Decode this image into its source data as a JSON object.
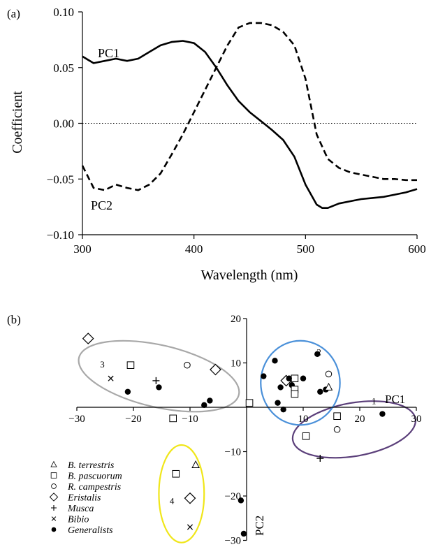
{
  "chart_data": [
    {
      "panel": "(a)",
      "type": "line",
      "xlabel": "Wavelength (nm)",
      "ylabel": "Coefficient",
      "xlim": [
        300,
        600
      ],
      "ylim": [
        -0.1,
        0.1
      ],
      "xticks": [
        "300",
        "400",
        "500",
        "600"
      ],
      "yticks": [
        "−0.10",
        "−0.05",
        "0.00",
        "0.05",
        "0.10"
      ],
      "zero_line": "dotted",
      "series": [
        {
          "name": "PC1",
          "style": "solid",
          "x": [
            300,
            310,
            320,
            330,
            340,
            350,
            360,
            370,
            380,
            390,
            400,
            410,
            420,
            430,
            440,
            450,
            460,
            470,
            480,
            490,
            500,
            510,
            515,
            520,
            530,
            540,
            550,
            560,
            570,
            580,
            590,
            600
          ],
          "y": [
            0.06,
            0.054,
            0.056,
            0.058,
            0.056,
            0.058,
            0.064,
            0.07,
            0.073,
            0.074,
            0.072,
            0.064,
            0.05,
            0.034,
            0.02,
            0.01,
            0.002,
            -0.006,
            -0.015,
            -0.03,
            -0.055,
            -0.073,
            -0.076,
            -0.076,
            -0.072,
            -0.07,
            -0.068,
            -0.067,
            -0.066,
            -0.064,
            -0.062,
            -0.059
          ]
        },
        {
          "name": "PC2",
          "style": "dashed",
          "x": [
            300,
            305,
            310,
            320,
            330,
            340,
            350,
            360,
            370,
            380,
            390,
            400,
            410,
            420,
            430,
            440,
            450,
            460,
            470,
            480,
            490,
            500,
            510,
            520,
            530,
            540,
            550,
            560,
            570,
            580,
            590,
            600
          ],
          "y": [
            -0.038,
            -0.048,
            -0.058,
            -0.06,
            -0.055,
            -0.058,
            -0.06,
            -0.055,
            -0.045,
            -0.028,
            -0.01,
            0.01,
            0.03,
            0.05,
            0.07,
            0.086,
            0.09,
            0.09,
            0.088,
            0.082,
            0.07,
            0.04,
            -0.01,
            -0.032,
            -0.04,
            -0.044,
            -0.046,
            -0.048,
            -0.05,
            -0.05,
            -0.051,
            -0.051
          ]
        }
      ]
    },
    {
      "panel": "(b)",
      "type": "scatter",
      "xaxis_name": "PC1",
      "yaxis_name": "PC2",
      "xlim": [
        -30,
        30
      ],
      "ylim": [
        -30,
        20
      ],
      "xticks": [
        "−30",
        "−20",
        "−10",
        "10",
        "20",
        "30"
      ],
      "yticks": [
        "20",
        "10",
        "−10",
        "−20",
        "−30"
      ],
      "legend_placement": "bottom-left",
      "legend": [
        {
          "symbol": "triangle",
          "label": "B. terrestris"
        },
        {
          "symbol": "square",
          "label": "B. pascuorum"
        },
        {
          "symbol": "circle",
          "label": "R. campestris"
        },
        {
          "symbol": "diamond",
          "label": "Eristalis"
        },
        {
          "symbol": "plus",
          "label": "Musca"
        },
        {
          "symbol": "cross",
          "label": "Bibio"
        },
        {
          "symbol": "dot",
          "label": "Generalists"
        }
      ],
      "clusters": [
        {
          "number": "1",
          "color": "#5b3f7a",
          "center": [
            19.0,
            -5.0
          ],
          "radii": [
            11.0,
            6.0
          ],
          "angle": -10,
          "label_at": [
            22.5,
            1.5
          ]
        },
        {
          "number": "2",
          "color": "#4a90d9",
          "center": [
            9.5,
            5.5
          ],
          "radii": [
            7.0,
            9.5
          ],
          "angle": 0,
          "label_at": [
            12.8,
            12.5
          ]
        },
        {
          "number": "3",
          "color": "#a8a8a8",
          "center": [
            -15.5,
            7.0
          ],
          "radii": [
            14.5,
            7.0
          ],
          "angle": 13,
          "label_at": [
            -25.5,
            9.8
          ]
        },
        {
          "number": "4",
          "color": "#f0e61a",
          "center": [
            -11.5,
            -19.5
          ],
          "radii": [
            4.0,
            11.0
          ],
          "angle": 0,
          "label_at": [
            -13.2,
            -21.0
          ]
        }
      ],
      "points": [
        {
          "symbol": "diamond",
          "x": -28.0,
          "y": 15.5
        },
        {
          "symbol": "square",
          "x": -20.5,
          "y": 9.5
        },
        {
          "symbol": "cross",
          "x": -24.0,
          "y": 6.5
        },
        {
          "symbol": "plus",
          "x": -16.0,
          "y": 6.0
        },
        {
          "symbol": "circle",
          "x": -10.5,
          "y": 9.5
        },
        {
          "symbol": "diamond",
          "x": -5.5,
          "y": 8.5
        },
        {
          "symbol": "dot",
          "x": -21.0,
          "y": 3.5
        },
        {
          "symbol": "dot",
          "x": -15.5,
          "y": 4.5
        },
        {
          "symbol": "dot",
          "x": -7.5,
          "y": 0.5
        },
        {
          "symbol": "dot",
          "x": -6.5,
          "y": 1.5
        },
        {
          "symbol": "square",
          "x": -13.0,
          "y": -2.5
        },
        {
          "symbol": "square",
          "x": 0.5,
          "y": 1.0
        },
        {
          "symbol": "dot",
          "x": 3.0,
          "y": 7.0
        },
        {
          "symbol": "dot",
          "x": 5.0,
          "y": 10.5
        },
        {
          "symbol": "dot",
          "x": 12.5,
          "y": 12.0
        },
        {
          "symbol": "circle",
          "x": 14.5,
          "y": 7.5
        },
        {
          "symbol": "square",
          "x": 8.5,
          "y": 6.5
        },
        {
          "symbol": "diamond",
          "x": 7.0,
          "y": 6.0
        },
        {
          "symbol": "dot",
          "x": 7.5,
          "y": 6.5
        },
        {
          "symbol": "dot",
          "x": 10.0,
          "y": 6.5
        },
        {
          "symbol": "dot",
          "x": 8.0,
          "y": 5.0
        },
        {
          "symbol": "dot",
          "x": 6.0,
          "y": 4.5
        },
        {
          "symbol": "square",
          "x": 8.5,
          "y": 4.0
        },
        {
          "symbol": "square",
          "x": 8.5,
          "y": 3.0
        },
        {
          "symbol": "dot",
          "x": 13.0,
          "y": 3.5
        },
        {
          "symbol": "dot",
          "x": 14.0,
          "y": 4.0
        },
        {
          "symbol": "triangle",
          "x": 14.5,
          "y": 4.5
        },
        {
          "symbol": "dot",
          "x": 5.5,
          "y": 1.0
        },
        {
          "symbol": "dot",
          "x": 6.5,
          "y": -0.5
        },
        {
          "symbol": "square",
          "x": 16.0,
          "y": -2.0
        },
        {
          "symbol": "square",
          "x": 10.5,
          "y": -6.5
        },
        {
          "symbol": "circle",
          "x": 16.0,
          "y": -5.0
        },
        {
          "symbol": "dot",
          "x": 24.0,
          "y": -1.5
        },
        {
          "symbol": "plus",
          "x": 13.0,
          "y": -11.5
        },
        {
          "symbol": "triangle",
          "x": -9.0,
          "y": -13.0
        },
        {
          "symbol": "square",
          "x": -12.5,
          "y": -15.0
        },
        {
          "symbol": "diamond",
          "x": -10.0,
          "y": -20.5
        },
        {
          "symbol": "cross",
          "x": -10.0,
          "y": -27.0
        },
        {
          "symbol": "dot",
          "x": -1.0,
          "y": -21.0
        },
        {
          "symbol": "dot",
          "x": -0.5,
          "y": -28.5
        }
      ]
    }
  ]
}
